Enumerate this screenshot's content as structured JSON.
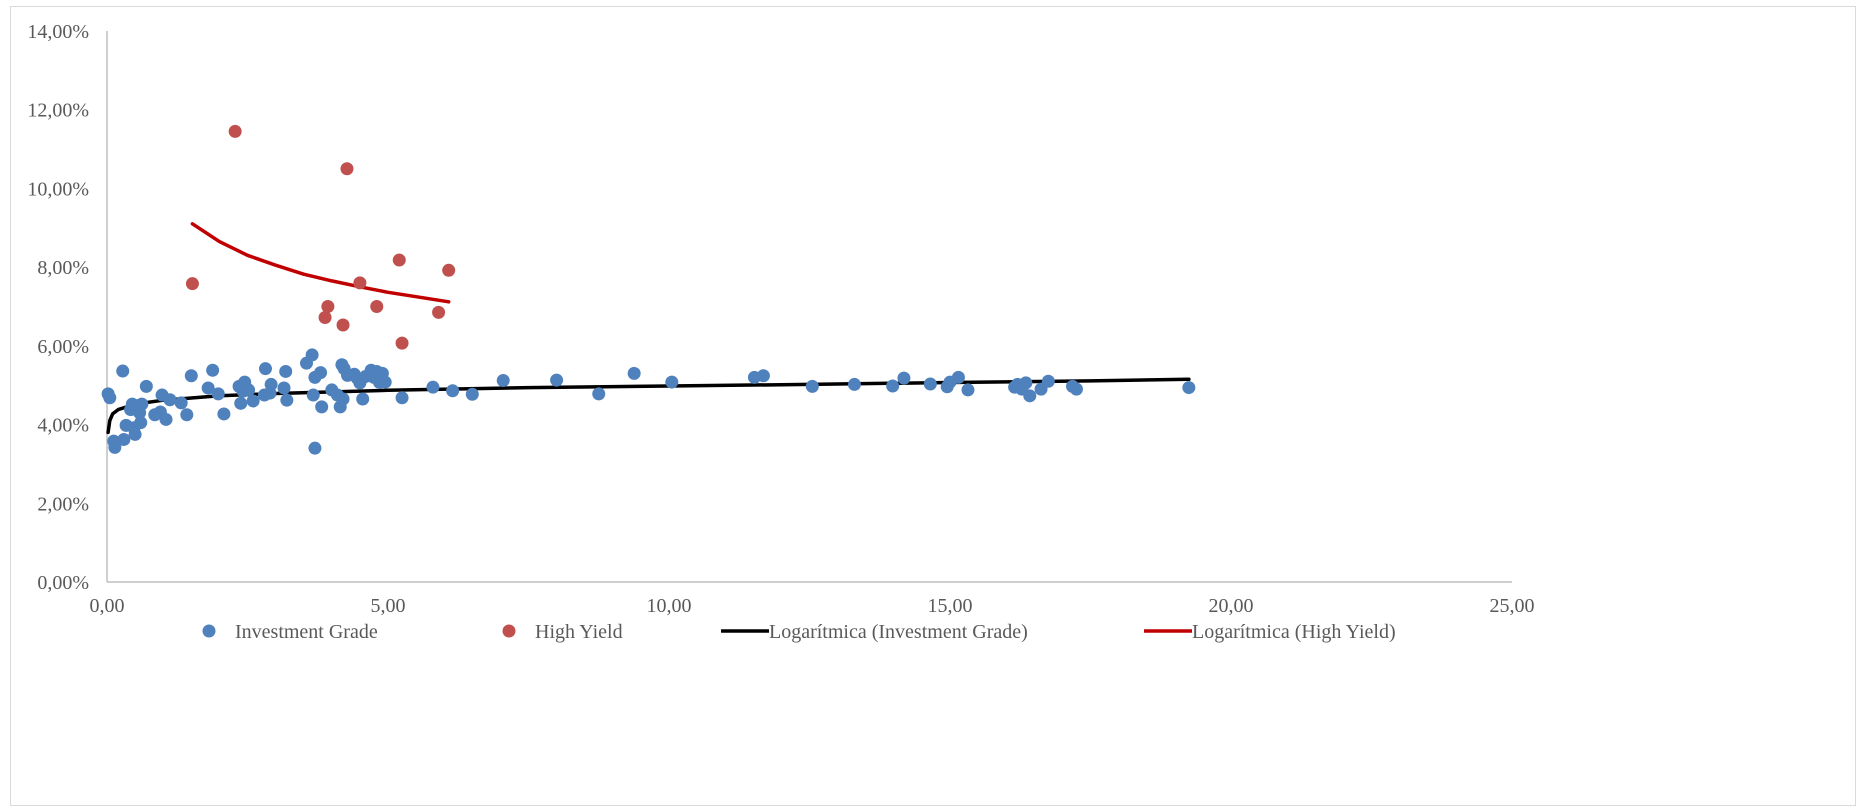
{
  "chart_data": {
    "type": "scatter",
    "xlim": [
      0,
      25
    ],
    "ylim": [
      0,
      14
    ],
    "x_ticks": [
      "0,00",
      "5,00",
      "10,00",
      "15,00",
      "20,00",
      "25,00"
    ],
    "y_ticks": [
      "0,00%",
      "2,00%",
      "4,00%",
      "6,00%",
      "8,00%",
      "10,00%",
      "12,00%",
      "14,00%"
    ],
    "grid": false,
    "legend_position": "bottom",
    "series": [
      {
        "name": "Investment Grade",
        "kind": "scatter",
        "color": "#4f81bd",
        "points": [
          [
            0.02,
            4.78
          ],
          [
            0.05,
            4.68
          ],
          [
            0.12,
            3.58
          ],
          [
            0.14,
            3.42
          ],
          [
            0.28,
            5.36
          ],
          [
            0.3,
            3.62
          ],
          [
            0.34,
            3.98
          ],
          [
            0.42,
            4.38
          ],
          [
            0.45,
            4.52
          ],
          [
            0.48,
            3.92
          ],
          [
            0.5,
            3.75
          ],
          [
            0.55,
            4.48
          ],
          [
            0.58,
            4.3
          ],
          [
            0.6,
            4.05
          ],
          [
            0.62,
            4.52
          ],
          [
            0.7,
            4.97
          ],
          [
            0.85,
            4.25
          ],
          [
            0.95,
            4.32
          ],
          [
            0.98,
            4.75
          ],
          [
            1.05,
            4.13
          ],
          [
            1.12,
            4.63
          ],
          [
            1.32,
            4.55
          ],
          [
            1.42,
            4.25
          ],
          [
            1.5,
            5.24
          ],
          [
            1.8,
            4.93
          ],
          [
            1.88,
            5.38
          ],
          [
            1.98,
            4.78
          ],
          [
            2.08,
            4.27
          ],
          [
            2.35,
            4.97
          ],
          [
            2.38,
            4.54
          ],
          [
            2.42,
            4.85
          ],
          [
            2.45,
            5.08
          ],
          [
            2.52,
            4.88
          ],
          [
            2.6,
            4.6
          ],
          [
            2.8,
            4.75
          ],
          [
            2.82,
            5.42
          ],
          [
            2.9,
            4.8
          ],
          [
            2.92,
            5.02
          ],
          [
            3.15,
            4.93
          ],
          [
            3.18,
            5.35
          ],
          [
            3.2,
            4.62
          ],
          [
            3.55,
            5.56
          ],
          [
            3.65,
            5.77
          ],
          [
            3.67,
            4.75
          ],
          [
            3.7,
            5.2
          ],
          [
            3.7,
            3.4
          ],
          [
            3.8,
            5.32
          ],
          [
            3.82,
            4.45
          ],
          [
            4.0,
            4.88
          ],
          [
            4.1,
            4.75
          ],
          [
            4.15,
            4.45
          ],
          [
            4.18,
            5.52
          ],
          [
            4.2,
            4.65
          ],
          [
            4.22,
            5.42
          ],
          [
            4.28,
            5.25
          ],
          [
            4.4,
            5.28
          ],
          [
            4.45,
            5.18
          ],
          [
            4.5,
            5.06
          ],
          [
            4.55,
            4.65
          ],
          [
            4.6,
            5.22
          ],
          [
            4.7,
            5.38
          ],
          [
            4.75,
            5.2
          ],
          [
            4.8,
            5.35
          ],
          [
            4.85,
            5.07
          ],
          [
            4.9,
            5.3
          ],
          [
            4.95,
            5.08
          ],
          [
            5.25,
            4.68
          ],
          [
            5.8,
            4.95
          ],
          [
            6.15,
            4.86
          ],
          [
            6.5,
            4.77
          ],
          [
            7.05,
            5.12
          ],
          [
            8.0,
            5.13
          ],
          [
            8.75,
            4.78
          ],
          [
            9.38,
            5.3
          ],
          [
            10.05,
            5.08
          ],
          [
            11.52,
            5.2
          ],
          [
            11.68,
            5.24
          ],
          [
            12.55,
            4.97
          ],
          [
            13.3,
            5.02
          ],
          [
            13.98,
            4.98
          ],
          [
            14.18,
            5.18
          ],
          [
            14.65,
            5.03
          ],
          [
            14.95,
            4.96
          ],
          [
            15.0,
            5.08
          ],
          [
            15.15,
            5.2
          ],
          [
            15.32,
            4.88
          ],
          [
            16.15,
            4.95
          ],
          [
            16.2,
            5.02
          ],
          [
            16.28,
            4.9
          ],
          [
            16.35,
            5.06
          ],
          [
            16.42,
            4.73
          ],
          [
            16.62,
            4.9
          ],
          [
            16.75,
            5.1
          ],
          [
            17.18,
            4.97
          ],
          [
            17.25,
            4.9
          ],
          [
            19.25,
            4.94
          ]
        ]
      },
      {
        "name": "High Yield",
        "kind": "scatter",
        "color": "#c0504d",
        "points": [
          [
            1.52,
            7.58
          ],
          [
            2.28,
            11.45
          ],
          [
            3.88,
            6.72
          ],
          [
            3.93,
            7.0
          ],
          [
            4.2,
            6.53
          ],
          [
            4.27,
            10.5
          ],
          [
            4.5,
            7.6
          ],
          [
            4.8,
            7.0
          ],
          [
            5.2,
            8.18
          ],
          [
            5.25,
            6.07
          ],
          [
            5.9,
            6.85
          ],
          [
            6.08,
            7.92
          ]
        ]
      },
      {
        "name": "Logarítmica (Investment Grade)",
        "kind": "line",
        "color": "#000000",
        "points": [
          [
            0.02,
            3.8
          ],
          [
            0.05,
            4.1
          ],
          [
            0.1,
            4.27
          ],
          [
            0.2,
            4.38
          ],
          [
            0.5,
            4.52
          ],
          [
            1.0,
            4.62
          ],
          [
            2.0,
            4.73
          ],
          [
            3.0,
            4.79
          ],
          [
            5.0,
            4.87
          ],
          [
            7.5,
            4.94
          ],
          [
            10.0,
            4.98
          ],
          [
            12.5,
            5.02
          ],
          [
            15.0,
            5.07
          ],
          [
            17.5,
            5.11
          ],
          [
            19.25,
            5.15
          ]
        ]
      },
      {
        "name": "Logarítmica (High Yield)",
        "kind": "line",
        "color": "#c00000",
        "points": [
          [
            1.52,
            9.1
          ],
          [
            2.0,
            8.65
          ],
          [
            2.5,
            8.3
          ],
          [
            3.0,
            8.05
          ],
          [
            3.5,
            7.82
          ],
          [
            4.0,
            7.65
          ],
          [
            4.5,
            7.5
          ],
          [
            5.0,
            7.36
          ],
          [
            5.5,
            7.25
          ],
          [
            6.08,
            7.12
          ]
        ]
      }
    ]
  }
}
